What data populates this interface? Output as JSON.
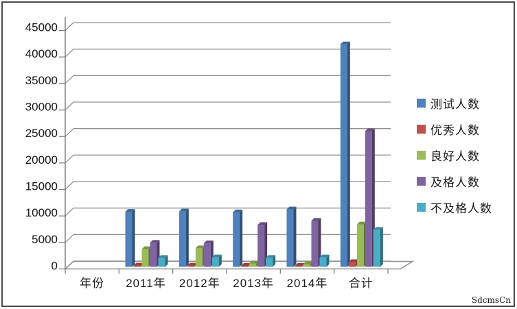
{
  "watermark": "SdcmsCn",
  "palette": {
    "gridline": "#909090",
    "axis": "#808080",
    "frame_border": "#4a4a4a",
    "text": "#1a1a1a",
    "background": "#ffffff"
  },
  "chart_data": {
    "type": "bar",
    "variant": "3d-clustered-column",
    "title": "",
    "xlabel": "",
    "ylabel": "",
    "categories": [
      "年份",
      "2011年",
      "2012年",
      "2013年",
      "2014年",
      "合计"
    ],
    "series": [
      {
        "name": "测试人数",
        "color": "#4F81BD",
        "values": [
          0,
          10400,
          10450,
          10300,
          10850,
          42000
        ]
      },
      {
        "name": "优秀人数",
        "color": "#C0504D",
        "values": [
          0,
          250,
          250,
          200,
          200,
          900
        ]
      },
      {
        "name": "良好人数",
        "color": "#9BBB59",
        "values": [
          0,
          3350,
          3500,
          650,
          500,
          8000
        ]
      },
      {
        "name": "及格人数",
        "color": "#8064A2",
        "values": [
          0,
          4550,
          4450,
          7900,
          8700,
          25600
        ]
      },
      {
        "name": "不及格人数",
        "color": "#4BACC6",
        "values": [
          0,
          1700,
          1800,
          1700,
          1800,
          7000
        ]
      }
    ],
    "ylim": [
      0,
      45000
    ],
    "ytick_step": 5000,
    "ytick_labels": [
      "0",
      "5000",
      "10000",
      "15000",
      "20000",
      "25000",
      "30000",
      "35000",
      "40000",
      "45000"
    ],
    "grid": true,
    "legend_position": "right"
  }
}
